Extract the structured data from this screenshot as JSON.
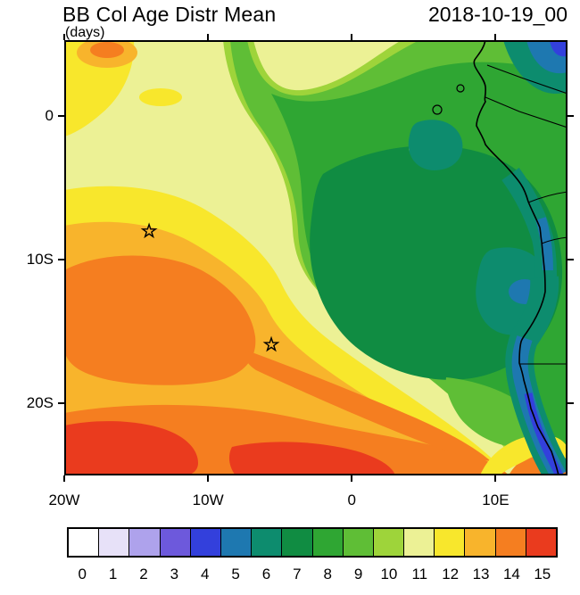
{
  "header": {
    "title": "BB Col Age Distr Mean",
    "subtitle": "(days)",
    "date": "2018-10-19_00"
  },
  "chart_data": {
    "type": "heatmap",
    "subtype": "filled-contour-map",
    "title": "BB Col Age Distr Mean",
    "units": "days",
    "timestamp": "2018-10-19_00",
    "extent": {
      "lon_min": -20,
      "lon_max": 15,
      "lat_min": -25,
      "lat_max": 5.3
    },
    "x_ticks": [
      {
        "value": -20,
        "label": "20W"
      },
      {
        "value": -10,
        "label": "10W"
      },
      {
        "value": 0,
        "label": "0"
      },
      {
        "value": 10,
        "label": "10E"
      }
    ],
    "y_ticks": [
      {
        "value": 0,
        "label": "0"
      },
      {
        "value": -10,
        "label": "10S"
      },
      {
        "value": -20,
        "label": "20S"
      }
    ],
    "colorbar": {
      "levels": [
        "0",
        "1",
        "2",
        "3",
        "4",
        "5",
        "6",
        "7",
        "8",
        "9",
        "10",
        "11",
        "12",
        "13",
        "14",
        "15"
      ],
      "colors": [
        "#FFFFFF",
        "#E7E1F8",
        "#AEA2EC",
        "#6D59DC",
        "#3340DC",
        "#1E78B0",
        "#0D8C6E",
        "#108C42",
        "#2FA633",
        "#5FBE36",
        "#9ED43A",
        "#ECF195",
        "#F8E72C",
        "#F8B42C",
        "#F57E20",
        "#EA3B1E"
      ]
    },
    "markers": [
      {
        "type": "star",
        "lon": -14.1,
        "lat": -8.0
      },
      {
        "type": "star",
        "lon": -5.6,
        "lat": -15.9
      }
    ],
    "field_features": [
      {
        "region": "north and northwest broad area",
        "approx_level": 11
      },
      {
        "region": "top-left corner patch",
        "approx_level": 14
      },
      {
        "region": "central-east offshore Congo/Angola",
        "approx_level": 8
      },
      {
        "region": "dark core east of 0 lon, 5S-20S",
        "approx_level": 7
      },
      {
        "region": "near-coast patches 5S-13S",
        "approx_level": 6
      },
      {
        "region": "northeast corner",
        "approx_level": 5
      },
      {
        "region": "west-central blob 15W-5W, 10S-18S",
        "approx_level": 14
      },
      {
        "region": "southern band below 20S",
        "approx_level": 14
      },
      {
        "region": "bottom-left and bottom-center",
        "approx_level": 15
      },
      {
        "region": "diagonal band toward bottom-right coast",
        "approx_level": 13
      },
      {
        "region": "coastal strip south of 15S",
        "approx_level": 5
      }
    ]
  }
}
